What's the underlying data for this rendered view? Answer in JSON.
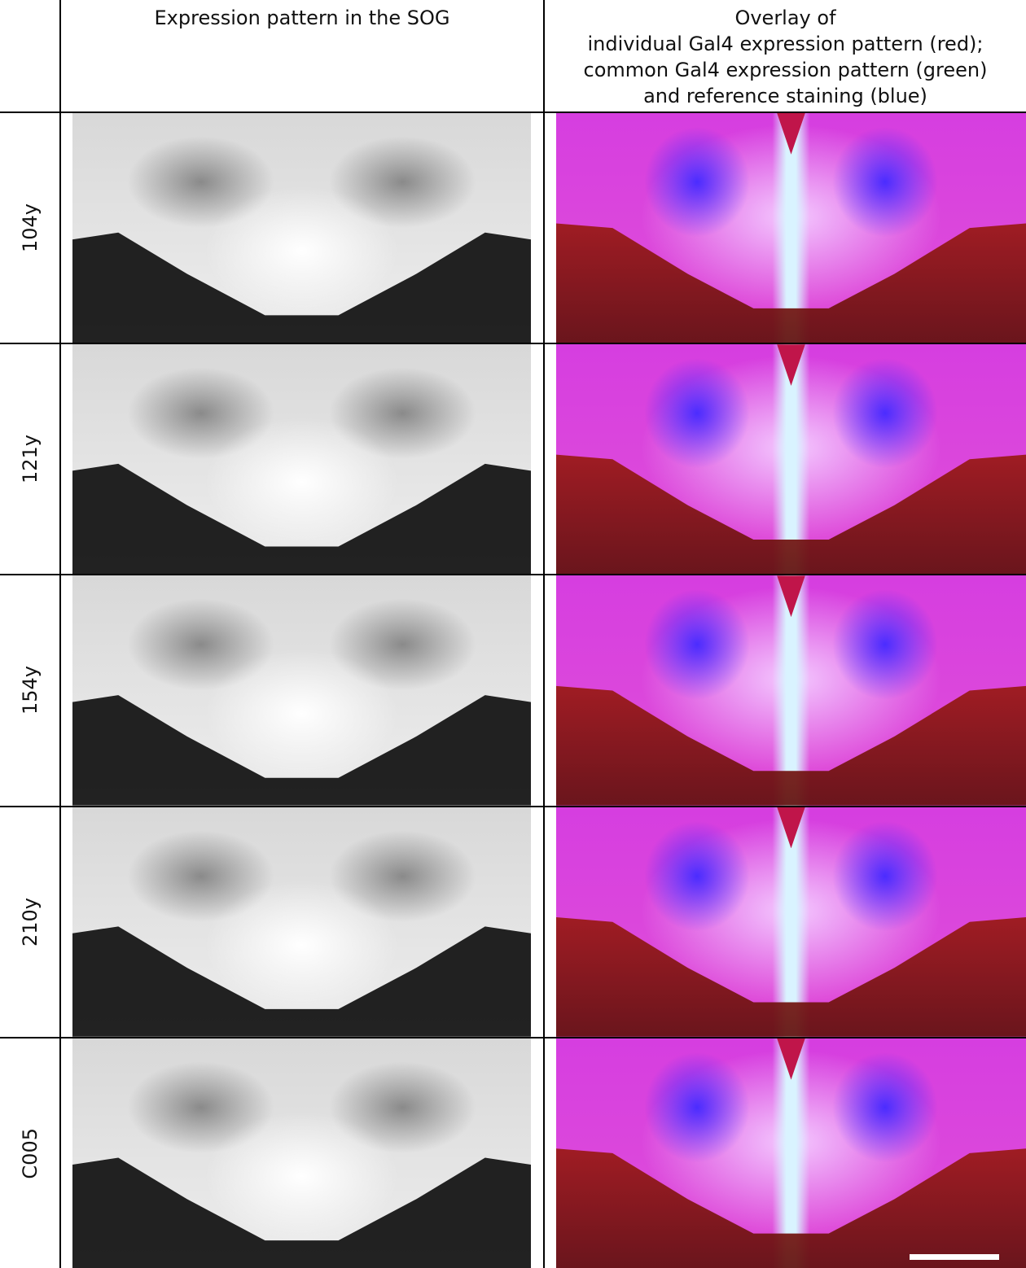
{
  "header": {
    "expression": "Expression pattern in the SOG",
    "overlay": [
      "Overlay of",
      "individual Gal4 expression pattern (red);",
      "common Gal4 expression pattern (green)",
      "and reference staining (blue)"
    ]
  },
  "rows": [
    "104y",
    "121y",
    "154y",
    "210y",
    "C005"
  ]
}
